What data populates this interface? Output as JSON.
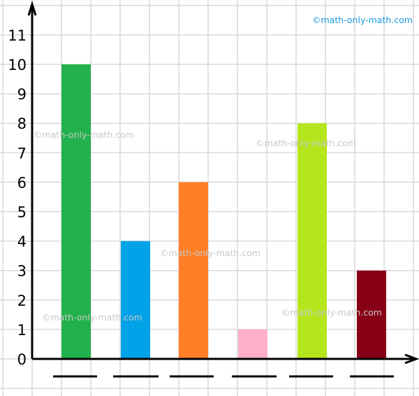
{
  "chart_data": {
    "type": "bar",
    "title": "",
    "xlabel": "",
    "ylabel": "",
    "categories": [
      "",
      "",
      "",
      "",
      "",
      ""
    ],
    "category_placeholders": "blank underlines",
    "values": [
      10,
      4,
      6,
      1,
      8,
      3
    ],
    "bar_colors": [
      "#22b14c",
      "#00a2e8",
      "#ff7f27",
      "#ffaec9",
      "#b5e61d",
      "#880015"
    ],
    "ylim": [
      0,
      11
    ],
    "yticks": [
      "0",
      "1",
      "2",
      "3",
      "4",
      "5",
      "6",
      "7",
      "8",
      "9",
      "10",
      "11"
    ],
    "grid": true,
    "legend": "none"
  },
  "watermarks": {
    "top": "©math-only-math.com",
    "gray": [
      "©math-only-math.com",
      "©math-only-math.com",
      "©math-only-math.com",
      "©math-only-math.com",
      "©math-only-math.com"
    ]
  }
}
